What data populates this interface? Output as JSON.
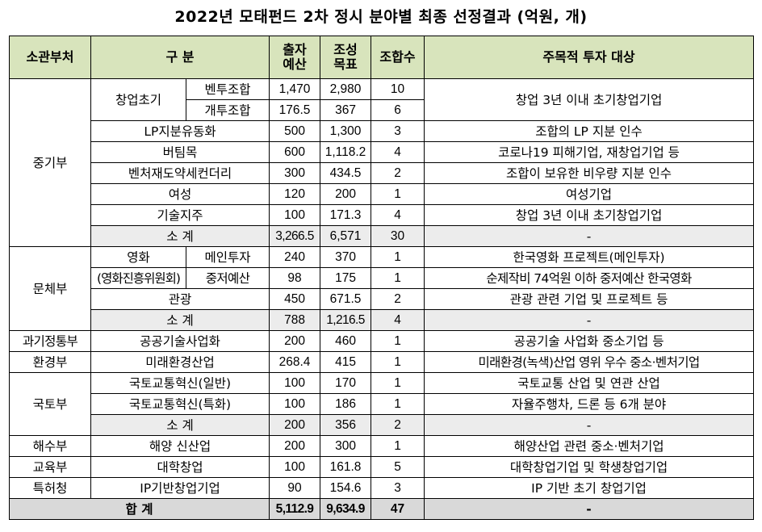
{
  "title": "2022년 모태펀드 2차 정시 분야별 최종 선정결과 (억원, 개)",
  "headers": {
    "ministry": "소관부처",
    "category": "구 분",
    "budget": "출자\n예산",
    "target": "조성\n목표",
    "funds": "조합수",
    "investment": "주목적 투자 대상"
  },
  "rows": {
    "mss": "중기부",
    "startup": "창업초기",
    "venture": "벤투조합",
    "venture_budget": "1,470",
    "venture_target": "2,980",
    "venture_funds": "10",
    "individual": "개투조합",
    "individual_budget": "176.5",
    "individual_target": "367",
    "individual_funds": "6",
    "startup_target_desc": "창업 3년 이내 초기창업기업",
    "lp": "LP지분유동화",
    "lp_budget": "500",
    "lp_target": "1,300",
    "lp_funds": "3",
    "lp_desc": "조합의 LP 지분 인수",
    "buteem": "버팀목",
    "buteem_budget": "600",
    "buteem_target": "1,118.2",
    "buteem_funds": "4",
    "buteem_desc": "코로나19 피해기업, 재창업기업 등",
    "secondary": "벤처재도약세컨더리",
    "secondary_budget": "300",
    "secondary_target": "434.5",
    "secondary_funds": "2",
    "secondary_desc": "조합이 보유한 비우량 지분 인수",
    "women": "여성",
    "women_budget": "120",
    "women_target": "200",
    "women_funds": "1",
    "women_desc": "여성기업",
    "tech": "기술지주",
    "tech_budget": "100",
    "tech_target": "171.3",
    "tech_funds": "4",
    "tech_desc": "창업 3년 이내 초기창업기업",
    "subtotal_label": "소 계",
    "mss_sub_budget": "3,266.5",
    "mss_sub_target": "6,571",
    "mss_sub_funds": "30",
    "dash": "-",
    "mcst": "문체부",
    "film": "영화",
    "film_org": "(영화진흥위원회)",
    "main_inv": "메인투자",
    "main_inv_budget": "240",
    "main_inv_target": "370",
    "main_inv_funds": "1",
    "main_inv_desc": "한국영화 프로젝트(메인투자)",
    "mid_budget_label": "중저예산",
    "mid_budget_budget": "98",
    "mid_budget_target": "175",
    "mid_budget_funds": "1",
    "mid_budget_desc": "순제작비 74억원 이하 중저예산 한국영화",
    "tour": "관광",
    "tour_budget": "450",
    "tour_target": "671.5",
    "tour_funds": "2",
    "tour_desc": "관광 관련 기업 및 프로젝트 등",
    "mcst_sub_budget": "788",
    "mcst_sub_target": "1,216.5",
    "mcst_sub_funds": "4",
    "msit": "과기정통부",
    "public_tech": "공공기술사업화",
    "public_tech_budget": "200",
    "public_tech_target": "460",
    "public_tech_funds": "1",
    "public_tech_desc": "공공기술 사업화 중소기업 등",
    "me": "환경부",
    "env": "미래환경산업",
    "env_budget": "268.4",
    "env_target": "415",
    "env_funds": "1",
    "env_desc": "미래환경(녹색)산업 영위 우수 중소·벤처기업",
    "molit": "국토부",
    "trans1": "국토교통혁신(일반)",
    "trans1_budget": "100",
    "trans1_target": "170",
    "trans1_funds": "1",
    "trans1_desc": "국토교통 산업 및 연관 산업",
    "trans2": "국토교통혁신(특화)",
    "trans2_budget": "100",
    "trans2_target": "186",
    "trans2_funds": "1",
    "trans2_desc": "자율주행차, 드론 등 6개 분야",
    "molit_sub_budget": "200",
    "molit_sub_target": "356",
    "molit_sub_funds": "2",
    "mof": "해수부",
    "ocean": "해양 신산업",
    "ocean_budget": "200",
    "ocean_target": "300",
    "ocean_funds": "1",
    "ocean_desc": "해양산업 관련 중소·벤처기업",
    "moe": "교육부",
    "univ": "대학창업",
    "univ_budget": "100",
    "univ_target": "161.8",
    "univ_funds": "5",
    "univ_desc": "대학창업기업 및 학생창업기업",
    "kipo": "특허청",
    "ip": "IP기반창업기업",
    "ip_budget": "90",
    "ip_target": "154.6",
    "ip_funds": "3",
    "ip_desc": "IP 기반 초기 창업기업",
    "total_label": "합 계",
    "total_budget": "5,112.9",
    "total_target": "9,634.9",
    "total_funds": "47"
  },
  "colors": {
    "header_bg": "#d8e4bc",
    "subtotal_bg": "#ececec",
    "total_bg": "#d9d9d9"
  }
}
